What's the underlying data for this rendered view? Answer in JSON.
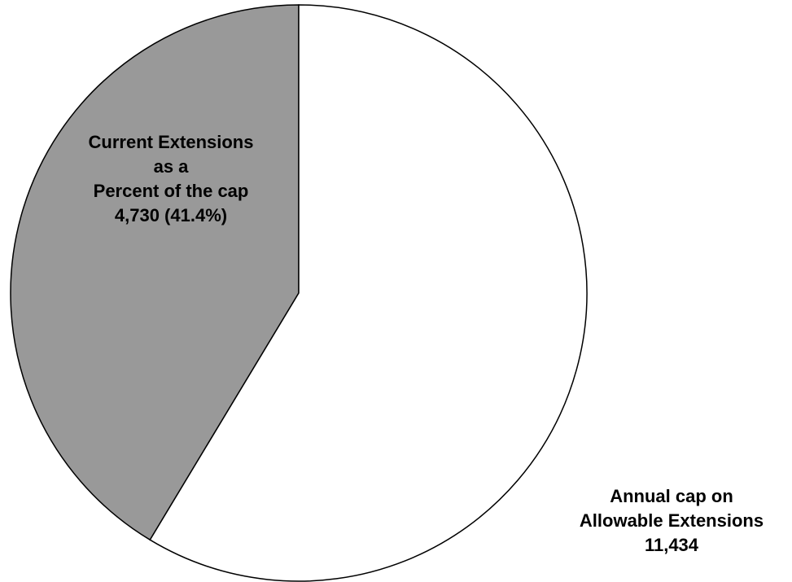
{
  "chart_data": {
    "type": "pie",
    "slices": [
      {
        "id": "current",
        "value": 4730,
        "percent": 41.4,
        "color": "#999999",
        "label_lines": [
          "Current Extensions",
          "as a",
          "Percent of the cap",
          "4,730 (41.4%)"
        ]
      },
      {
        "id": "remaining",
        "value": 6704,
        "color": "#ffffff"
      }
    ],
    "total": 11434,
    "total_label_lines": [
      "Annual cap on",
      "Allowable Extensions",
      "11,434"
    ],
    "outline_color": "#000000",
    "start_direction": "12 o'clock",
    "slice_order": "counter-clockwise"
  }
}
